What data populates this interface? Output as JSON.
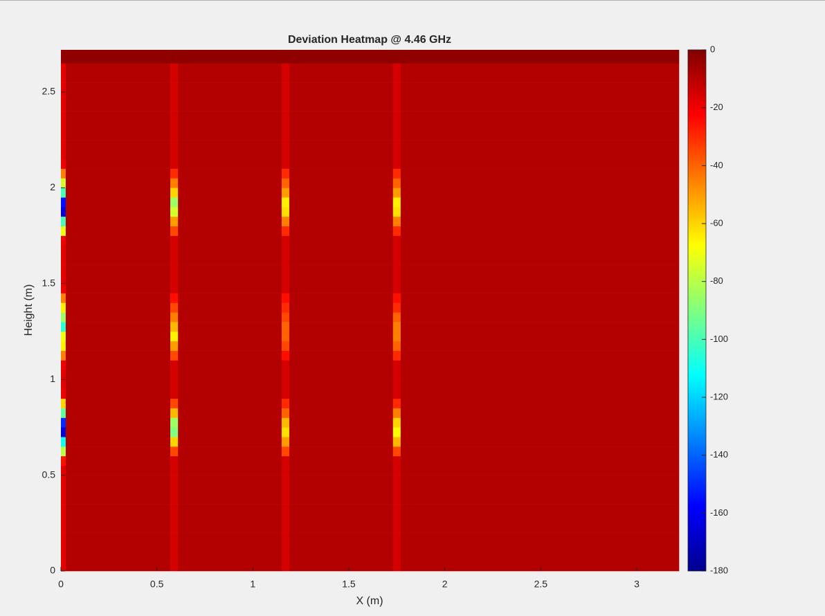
{
  "chart_data": {
    "type": "heatmap",
    "title": "Deviation Heatmap @ 4.46 GHz",
    "x_label": "X (m)",
    "y_label": "Height (m)",
    "xlim": [
      0,
      3.22
    ],
    "ylim": [
      0,
      2.72
    ],
    "xticks": [
      0,
      0.5,
      1,
      1.5,
      2,
      2.5,
      3
    ],
    "yticks": [
      0,
      0.5,
      1,
      1.5,
      2,
      2.5
    ],
    "colormap": "jet",
    "colorbar": {
      "lim": [
        -180,
        0
      ],
      "ticks": [
        0,
        -20,
        -40,
        -60,
        -80,
        -100,
        -120,
        -140,
        -160,
        -180
      ]
    },
    "x_edges": [
      0,
      0.025,
      0.57,
      0.61,
      1.15,
      1.19,
      1.73,
      1.77,
      3.22
    ],
    "y_edges": [
      0,
      0.05,
      0.1,
      0.15,
      0.2,
      0.25,
      0.3,
      0.35,
      0.4,
      0.45,
      0.5,
      0.55,
      0.6,
      0.65,
      0.7,
      0.75,
      0.8,
      0.85,
      0.9,
      0.95,
      1,
      1.05,
      1.1,
      1.15,
      1.2,
      1.25,
      1.3,
      1.35,
      1.4,
      1.45,
      1.5,
      1.55,
      1.6,
      1.65,
      1.7,
      1.75,
      1.8,
      1.85,
      1.9,
      1.95,
      2,
      2.05,
      2.1,
      2.15,
      2.2,
      2.25,
      2.3,
      2.35,
      2.4,
      2.45,
      2.5,
      2.55,
      2.6,
      2.65,
      2.72
    ],
    "z": [
      [
        -18,
        -9,
        -15,
        -9,
        -15,
        -9,
        -15,
        -9
      ],
      [
        -18,
        -9,
        -15,
        -9,
        -15,
        -9,
        -15,
        -9
      ],
      [
        -18,
        -9,
        -15,
        -9,
        -15,
        -9,
        -15,
        -9
      ],
      [
        -18,
        -9,
        -15,
        -9,
        -15,
        -9,
        -15,
        -9
      ],
      [
        -18,
        -9,
        -15,
        -9,
        -15,
        -9,
        -15,
        -9
      ],
      [
        -18,
        -9,
        -15,
        -9,
        -15,
        -9,
        -15,
        -9
      ],
      [
        -18,
        -9,
        -15,
        -9,
        -15,
        -9,
        -15,
        -9
      ],
      [
        -18,
        -9,
        -15,
        -9,
        -15,
        -9,
        -15,
        -9
      ],
      [
        -18,
        -9,
        -15,
        -9,
        -15,
        -9,
        -15,
        -9
      ],
      [
        -18,
        -9,
        -15,
        -9,
        -15,
        -9,
        -15,
        -9
      ],
      [
        -18,
        -9,
        -15,
        -9,
        -15,
        -9,
        -15,
        -9
      ],
      [
        -25,
        -9,
        -15,
        -9,
        -15,
        -9,
        -15,
        -9
      ],
      [
        -80,
        -9,
        -35,
        -9,
        -35,
        -9,
        -35,
        -9
      ],
      [
        -110,
        -9,
        -60,
        -9,
        -50,
        -9,
        -55,
        -9
      ],
      [
        -165,
        -9,
        -90,
        -9,
        -62,
        -9,
        -68,
        -9
      ],
      [
        -150,
        -9,
        -85,
        -9,
        -55,
        -9,
        -60,
        -9
      ],
      [
        -95,
        -9,
        -55,
        -9,
        -40,
        -9,
        -45,
        -9
      ],
      [
        -60,
        -9,
        -35,
        -9,
        -30,
        -9,
        -30,
        -9
      ],
      [
        -20,
        -9,
        -15,
        -9,
        -15,
        -9,
        -15,
        -9
      ],
      [
        -18,
        -9,
        -15,
        -9,
        -15,
        -9,
        -15,
        -9
      ],
      [
        -18,
        -9,
        -15,
        -9,
        -15,
        -9,
        -15,
        -9
      ],
      [
        -20,
        -9,
        -15,
        -9,
        -15,
        -9,
        -15,
        -9
      ],
      [
        -45,
        -9,
        -35,
        -9,
        -25,
        -9,
        -30,
        -9
      ],
      [
        -65,
        -9,
        -50,
        -9,
        -35,
        -9,
        -40,
        -9
      ],
      [
        -70,
        -9,
        -65,
        -9,
        -40,
        -9,
        -45,
        -9
      ],
      [
        -105,
        -9,
        -55,
        -9,
        -40,
        -9,
        -45,
        -9
      ],
      [
        -85,
        -9,
        -45,
        -9,
        -35,
        -9,
        -40,
        -9
      ],
      [
        -65,
        -9,
        -35,
        -9,
        -30,
        -9,
        -30,
        -9
      ],
      [
        -45,
        -9,
        -25,
        -9,
        -25,
        -9,
        -25,
        -9
      ],
      [
        -20,
        -9,
        -15,
        -9,
        -15,
        -9,
        -15,
        -9
      ],
      [
        -18,
        -9,
        -15,
        -9,
        -15,
        -9,
        -15,
        -9
      ],
      [
        -18,
        -9,
        -15,
        -9,
        -15,
        -9,
        -15,
        -9
      ],
      [
        -18,
        -9,
        -15,
        -9,
        -15,
        -9,
        -15,
        -9
      ],
      [
        -18,
        -9,
        -15,
        -9,
        -15,
        -9,
        -15,
        -9
      ],
      [
        -20,
        -9,
        -15,
        -9,
        -15,
        -9,
        -15,
        -9
      ],
      [
        -70,
        -9,
        -35,
        -9,
        -30,
        -9,
        -30,
        -9
      ],
      [
        -100,
        -9,
        -50,
        -9,
        -45,
        -9,
        -45,
        -9
      ],
      [
        -165,
        -9,
        -75,
        -9,
        -62,
        -9,
        -62,
        -9
      ],
      [
        -155,
        -9,
        -85,
        -9,
        -65,
        -9,
        -65,
        -9
      ],
      [
        -100,
        -9,
        -60,
        -9,
        -50,
        -9,
        -50,
        -9
      ],
      [
        -75,
        -9,
        -45,
        -9,
        -40,
        -9,
        -40,
        -9
      ],
      [
        -45,
        -9,
        -30,
        -9,
        -30,
        -9,
        -30,
        -9
      ],
      [
        -20,
        -9,
        -15,
        -9,
        -15,
        -9,
        -15,
        -9
      ],
      [
        -18,
        -9,
        -15,
        -9,
        -15,
        -9,
        -15,
        -9
      ],
      [
        -18,
        -9,
        -15,
        -9,
        -15,
        -9,
        -15,
        -9
      ],
      [
        -18,
        -9,
        -15,
        -9,
        -15,
        -9,
        -15,
        -9
      ],
      [
        -18,
        -9,
        -15,
        -9,
        -15,
        -9,
        -15,
        -9
      ],
      [
        -18,
        -9,
        -15,
        -9,
        -15,
        -9,
        -15,
        -9
      ],
      [
        -18,
        -9,
        -15,
        -9,
        -15,
        -9,
        -15,
        -9
      ],
      [
        -18,
        -9,
        -15,
        -9,
        -15,
        -9,
        -15,
        -9
      ],
      [
        -18,
        -9,
        -15,
        -9,
        -15,
        -9,
        -15,
        -9
      ],
      [
        -18,
        -9,
        -15,
        -9,
        -15,
        -9,
        -15,
        -9
      ],
      [
        -18,
        -9,
        -15,
        -9,
        -15,
        -9,
        -15,
        -9
      ],
      [
        -3,
        -3,
        -3,
        -3,
        -3,
        -3,
        -3,
        -3
      ]
    ]
  }
}
